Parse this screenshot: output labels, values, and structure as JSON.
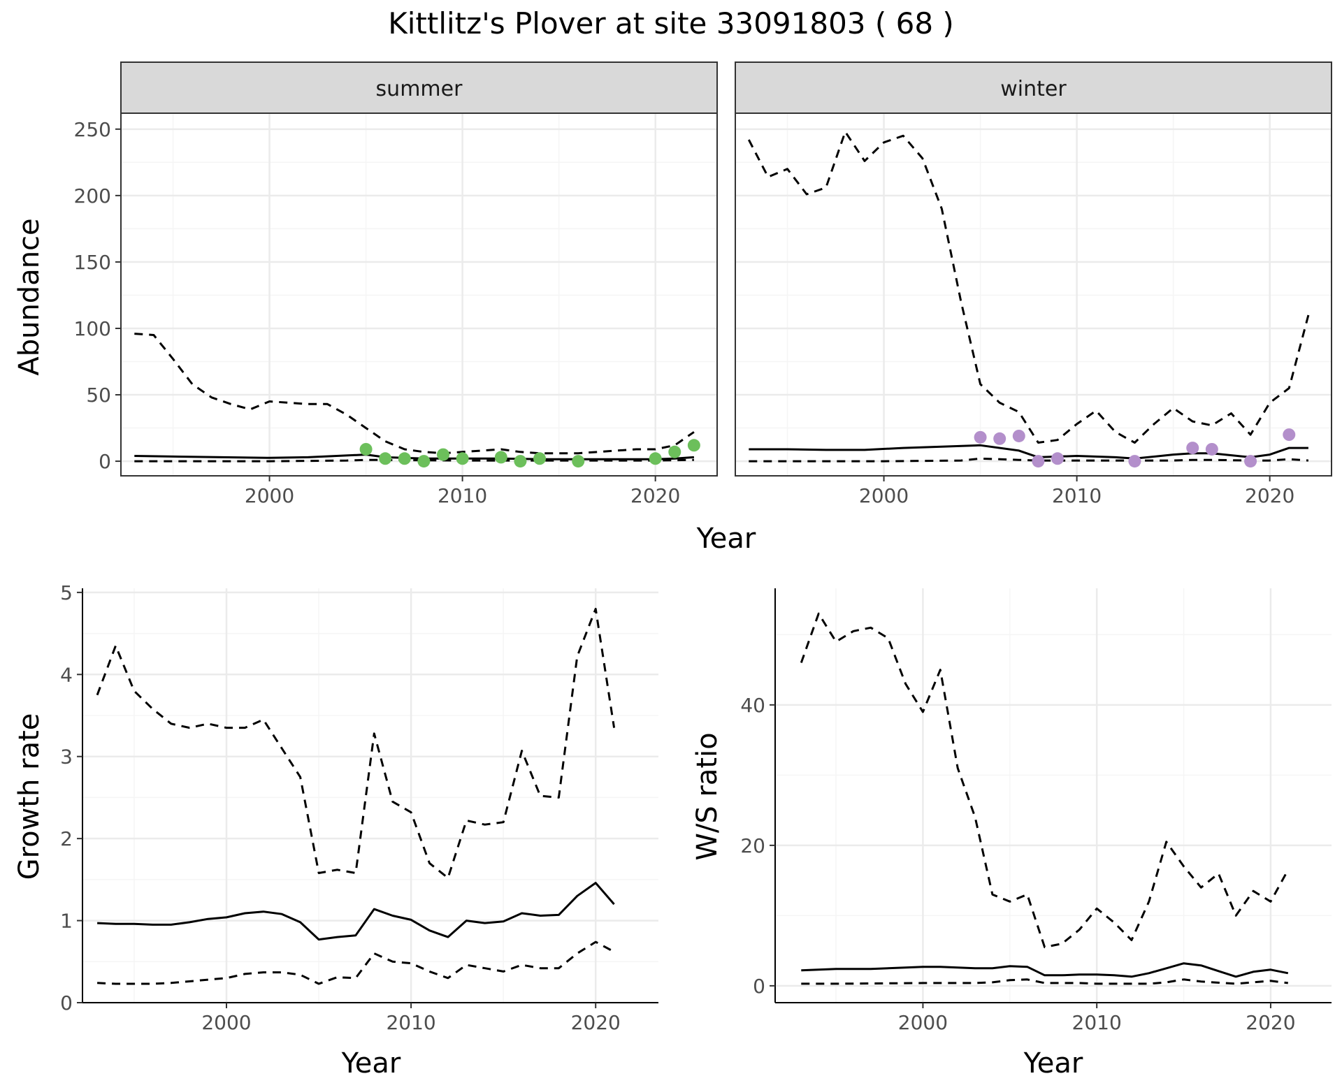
{
  "title": "Kittlitz's Plover at site 33091803 ( 68 )",
  "colors": {
    "summer_points": "#6cbf5b",
    "winter_points": "#b38fcb",
    "lines": "#000000",
    "strip_fill": "#d9d9d9",
    "grid_major": "#ebebeb",
    "grid_minor": "#f5f5f5"
  },
  "chart_data": [
    {
      "id": "summer",
      "type": "line",
      "facet": "summer",
      "xlabel": "",
      "ylabel": "Abundance",
      "x_ticks": [
        2000,
        2010,
        2020
      ],
      "y_ticks": [
        0,
        50,
        100,
        150,
        200,
        250
      ],
      "xlim": [
        1992.3,
        2023.2
      ],
      "ylim": [
        -11,
        262
      ],
      "grid": true,
      "series": [
        {
          "role": "estimate",
          "style": "solid",
          "x": [
            1993,
            1995,
            2000,
            2002,
            2005,
            2006,
            2008,
            2010,
            2012,
            2014,
            2016,
            2018,
            2020,
            2021,
            2022
          ],
          "y": [
            4,
            3.5,
            2.5,
            3,
            5,
            3,
            2,
            2,
            2,
            1.5,
            1.5,
            1.5,
            1.5,
            2,
            3
          ]
        },
        {
          "role": "upper",
          "style": "dashed",
          "x": [
            1993,
            1994,
            1995,
            1996,
            1997,
            1998,
            1999,
            2000,
            2001,
            2002,
            2003,
            2004,
            2005,
            2006,
            2007,
            2008,
            2009,
            2010,
            2011,
            2012,
            2013,
            2014,
            2015,
            2016,
            2017,
            2018,
            2019,
            2020,
            2021,
            2022
          ],
          "y": [
            96,
            95,
            77,
            58,
            48,
            43,
            39,
            45,
            44,
            43,
            43,
            35,
            25,
            15,
            9,
            7,
            6,
            7,
            8,
            9,
            7,
            6,
            6,
            6,
            7,
            8,
            9,
            9,
            12,
            22
          ]
        },
        {
          "role": "lower",
          "style": "dashed",
          "x": [
            1993,
            2000,
            2004,
            2005,
            2010,
            2015,
            2020,
            2022
          ],
          "y": [
            0,
            0,
            0.5,
            1,
            0.5,
            0.5,
            0.5,
            1
          ]
        },
        {
          "role": "observed",
          "style": "points",
          "x": [
            2005,
            2006,
            2007,
            2008,
            2009,
            2010,
            2012,
            2013,
            2014,
            2016,
            2020,
            2021,
            2022
          ],
          "y": [
            9,
            2,
            2,
            0,
            5,
            2,
            3,
            0,
            2,
            0,
            2,
            7,
            12
          ]
        }
      ]
    },
    {
      "id": "winter",
      "type": "line",
      "facet": "winter",
      "xlabel": "",
      "ylabel": "",
      "x_ticks": [
        2000,
        2010,
        2020
      ],
      "y_ticks": [],
      "xlim": [
        1992.3,
        2023.2
      ],
      "ylim": [
        -11,
        262
      ],
      "grid": true,
      "series": [
        {
          "role": "estimate",
          "style": "solid",
          "x": [
            1993,
            1995,
            1997,
            1999,
            2001,
            2003,
            2005,
            2007,
            2008,
            2010,
            2012,
            2013,
            2015,
            2016,
            2017,
            2019,
            2020,
            2021,
            2022
          ],
          "y": [
            9,
            9,
            8.5,
            8.5,
            10,
            11,
            12,
            8,
            3,
            4,
            3,
            2,
            5,
            6,
            6,
            3,
            5,
            10,
            10
          ]
        },
        {
          "role": "upper",
          "style": "dashed",
          "x": [
            1993,
            1994,
            1995,
            1996,
            1997,
            1998,
            1999,
            2000,
            2001,
            2002,
            2003,
            2004,
            2005,
            2006,
            2007,
            2008,
            2009,
            2010,
            2011,
            2012,
            2013,
            2014,
            2015,
            2016,
            2017,
            2018,
            2019,
            2020,
            2021,
            2022
          ],
          "y": [
            242,
            214,
            220,
            201,
            206,
            248,
            226,
            240,
            245,
            228,
            190,
            120,
            58,
            44,
            37,
            14,
            16,
            28,
            38,
            22,
            14,
            28,
            40,
            30,
            27,
            36,
            20,
            44,
            55,
            110
          ]
        },
        {
          "role": "lower",
          "style": "dashed",
          "x": [
            1993,
            2000,
            2004,
            2005,
            2007,
            2008,
            2010,
            2015,
            2016,
            2017,
            2019,
            2020,
            2021,
            2022
          ],
          "y": [
            0,
            0,
            0.5,
            2,
            1,
            0.5,
            0.5,
            0.5,
            1,
            1,
            0.5,
            0.5,
            1.5,
            0.5
          ]
        },
        {
          "role": "observed",
          "style": "points",
          "x": [
            2005,
            2006,
            2007,
            2008,
            2009,
            2013,
            2016,
            2017,
            2019,
            2021
          ],
          "y": [
            18,
            17,
            19,
            0,
            2,
            0,
            10,
            9,
            0,
            20
          ]
        }
      ]
    },
    {
      "id": "growth",
      "type": "line",
      "xlabel": "Year",
      "ylabel": "Growth rate",
      "x_ticks": [
        2000,
        2010,
        2020
      ],
      "y_ticks": [
        0,
        1,
        2,
        3,
        4,
        5
      ],
      "xlim": [
        1992.2,
        2023.4
      ],
      "ylim": [
        0,
        5.05
      ],
      "grid": true,
      "series": [
        {
          "role": "estimate",
          "style": "solid",
          "x": [
            1993,
            1994,
            1995,
            1996,
            1997,
            1998,
            1999,
            2000,
            2001,
            2002,
            2003,
            2004,
            2005,
            2006,
            2007,
            2008,
            2009,
            2010,
            2011,
            2012,
            2013,
            2014,
            2015,
            2016,
            2017,
            2018,
            2019,
            2020,
            2021
          ],
          "y": [
            0.97,
            0.96,
            0.96,
            0.95,
            0.95,
            0.98,
            1.02,
            1.04,
            1.09,
            1.11,
            1.08,
            0.98,
            0.77,
            0.8,
            0.82,
            1.14,
            1.06,
            1.01,
            0.88,
            0.8,
            1.0,
            0.97,
            0.99,
            1.09,
            1.06,
            1.07,
            1.3,
            1.46,
            1.2
          ]
        },
        {
          "role": "upper",
          "style": "dashed",
          "x": [
            1993,
            1994,
            1995,
            1996,
            1997,
            1998,
            1999,
            2000,
            2001,
            2002,
            2003,
            2004,
            2005,
            2006,
            2007,
            2008,
            2009,
            2010,
            2011,
            2012,
            2013,
            2014,
            2015,
            2016,
            2017,
            2018,
            2019,
            2020,
            2021
          ],
          "y": [
            3.75,
            4.35,
            3.8,
            3.58,
            3.4,
            3.35,
            3.4,
            3.35,
            3.35,
            3.45,
            3.1,
            2.75,
            1.58,
            1.62,
            1.58,
            3.28,
            2.45,
            2.32,
            1.7,
            1.52,
            2.22,
            2.17,
            2.2,
            3.07,
            2.52,
            2.5,
            4.22,
            4.8,
            3.35
          ]
        },
        {
          "role": "lower",
          "style": "dashed",
          "x": [
            1993,
            1994,
            1995,
            1996,
            1997,
            1998,
            1999,
            2000,
            2001,
            2002,
            2003,
            2004,
            2005,
            2006,
            2007,
            2008,
            2009,
            2010,
            2011,
            2012,
            2013,
            2014,
            2015,
            2016,
            2017,
            2018,
            2019,
            2020,
            2021
          ],
          "y": [
            0.24,
            0.23,
            0.23,
            0.23,
            0.24,
            0.26,
            0.28,
            0.3,
            0.35,
            0.37,
            0.37,
            0.34,
            0.23,
            0.31,
            0.3,
            0.6,
            0.5,
            0.48,
            0.38,
            0.3,
            0.46,
            0.42,
            0.38,
            0.46,
            0.42,
            0.42,
            0.6,
            0.74,
            0.62
          ]
        }
      ]
    },
    {
      "id": "ratio",
      "type": "line",
      "xlabel": "Year",
      "ylabel": "W/S ratio",
      "x_ticks": [
        2000,
        2010,
        2020
      ],
      "y_ticks": [
        0,
        20,
        40
      ],
      "xlim": [
        1991.5,
        2023.5
      ],
      "ylim": [
        -2.4,
        56.6
      ],
      "grid": true,
      "series": [
        {
          "role": "estimate",
          "style": "solid",
          "x": [
            1993,
            1995,
            1997,
            1999,
            2000,
            2001,
            2002,
            2003,
            2004,
            2005,
            2006,
            2007,
            2008,
            2009,
            2010,
            2011,
            2012,
            2013,
            2014,
            2015,
            2016,
            2017,
            2018,
            2019,
            2020,
            2021
          ],
          "y": [
            2.2,
            2.4,
            2.4,
            2.6,
            2.7,
            2.7,
            2.6,
            2.5,
            2.5,
            2.8,
            2.7,
            1.5,
            1.5,
            1.6,
            1.6,
            1.5,
            1.3,
            1.8,
            2.5,
            3.2,
            2.9,
            2.1,
            1.3,
            2.0,
            2.3,
            1.8
          ]
        },
        {
          "role": "upper",
          "style": "dashed",
          "x": [
            1993,
            1994,
            1995,
            1996,
            1997,
            1998,
            1999,
            2000,
            2001,
            2002,
            2003,
            2004,
            2005,
            2006,
            2007,
            2008,
            2009,
            2010,
            2011,
            2012,
            2013,
            2014,
            2015,
            2016,
            2017,
            2018,
            2019,
            2020,
            2021
          ],
          "y": [
            46,
            53,
            49,
            50.5,
            51,
            49.5,
            43,
            39,
            45,
            31,
            24,
            13,
            12,
            13,
            5.5,
            6,
            8,
            11,
            9,
            6.5,
            12,
            20.5,
            17,
            14,
            16,
            10,
            13.5,
            12,
            16.5
          ]
        },
        {
          "role": "lower",
          "style": "dashed",
          "x": [
            1993,
            1995,
            2000,
            2003,
            2004,
            2005,
            2006,
            2007,
            2009,
            2010,
            2012,
            2013,
            2014,
            2015,
            2016,
            2018,
            2020,
            2021
          ],
          "y": [
            0.3,
            0.3,
            0.4,
            0.4,
            0.5,
            0.8,
            0.9,
            0.4,
            0.4,
            0.3,
            0.3,
            0.3,
            0.5,
            0.9,
            0.6,
            0.3,
            0.7,
            0.4
          ]
        }
      ]
    }
  ]
}
